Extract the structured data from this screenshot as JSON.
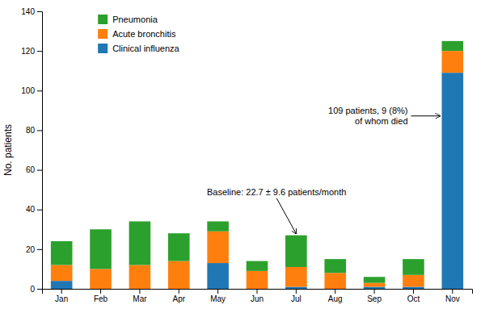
{
  "chart_data": {
    "type": "bar",
    "stacked": true,
    "categories": [
      "Jan",
      "Feb",
      "Mar",
      "Apr",
      "May",
      "Jun",
      "Jul",
      "Aug",
      "Sep",
      "Oct",
      "Nov"
    ],
    "series": [
      {
        "name": "Clinical influenza",
        "values": [
          4,
          0,
          0,
          0,
          13,
          0,
          1,
          0,
          1,
          1,
          109
        ]
      },
      {
        "name": "Acute bronchitis",
        "values": [
          8,
          10,
          12,
          14,
          16,
          9,
          10,
          8,
          2,
          6,
          11
        ]
      },
      {
        "name": "Pneumonia",
        "values": [
          12,
          20,
          22,
          14,
          5,
          5,
          16,
          7,
          3,
          8,
          5
        ]
      }
    ],
    "ylim": [
      0,
      140
    ],
    "yticks": [
      0,
      20,
      40,
      60,
      80,
      100,
      120,
      140
    ],
    "ylabel": "No. patients",
    "legend": "upper left",
    "annotations": [
      {
        "text": "Baseline: 22.7 ± 9.6 patients/month",
        "category": "Jul"
      },
      {
        "text": "109 patients, 9 (8%)\nof whom died",
        "category": "Nov"
      }
    ]
  }
}
